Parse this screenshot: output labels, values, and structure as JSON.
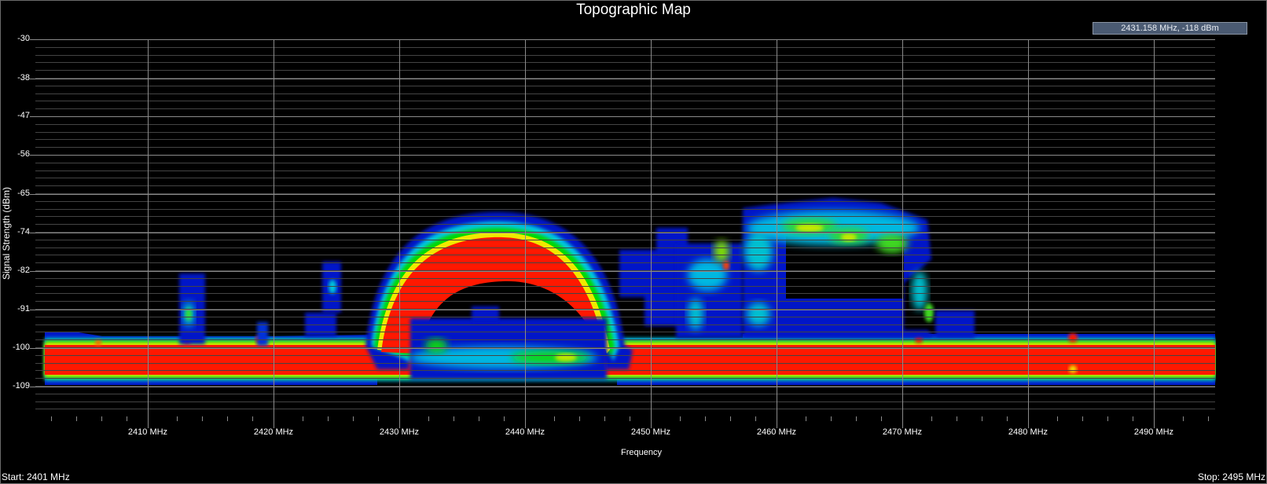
{
  "window": {
    "title": "Topographic Map"
  },
  "cursor_readout": {
    "text": "2431.158 MHz,   -118 dBm",
    "frequency_mhz": 2431.158,
    "level_dbm": -118
  },
  "footer": {
    "start": "Start: 2401 MHz",
    "stop": "Stop: 2495 MHz"
  },
  "axes": {
    "y_title": "Signal Strength (dBm)",
    "x_title": "Frequency",
    "y_ticks": [
      "-30",
      "-38",
      "-47",
      "-56",
      "-65",
      "-74",
      "-82",
      "-91",
      "-100",
      "-109"
    ],
    "x_ticks": [
      "2410 MHz",
      "2420 MHz",
      "2430 MHz",
      "2440 MHz",
      "2450 MHz",
      "2460 MHz",
      "2470 MHz",
      "2480 MHz",
      "2490 MHz"
    ]
  },
  "colors": {
    "background": "#000000",
    "grid_major": "#8a8a8a",
    "grid_minor": "#444444",
    "density_low": "#0018c8",
    "density_mid_low": "#00c8e0",
    "density_mid": "#00d800",
    "density_mid_high": "#e8f000",
    "density_high": "#ff1800",
    "readout_bg": "#4a5a72"
  },
  "chart_data": {
    "type": "heatmap",
    "title": "Topographic Map",
    "xlabel": "Frequency",
    "ylabel": "Signal Strength (dBm)",
    "x_range_mhz": [
      2401,
      2495
    ],
    "y_range_dbm": [
      -115,
      -30
    ],
    "x_tick_values": [
      2410,
      2420,
      2430,
      2440,
      2450,
      2460,
      2470,
      2480,
      2490
    ],
    "y_tick_values": [
      -30,
      -38,
      -47,
      -56,
      -65,
      -74,
      -82,
      -91,
      -100,
      -109
    ],
    "grid": true,
    "colormap": [
      "blue (low density)",
      "cyan",
      "green",
      "yellow",
      "red (high density)"
    ],
    "features": [
      {
        "name": "noise floor",
        "freq_mhz": [
          2401,
          2495
        ],
        "level_dbm": [
          -106,
          -99
        ],
        "density": "high"
      },
      {
        "name": "arc signal (wide band)",
        "freq_mhz": [
          2427,
          2446
        ],
        "level_dbm": [
          -100,
          -73
        ],
        "peak_level_dbm": -74,
        "density": "high"
      },
      {
        "name": "lower band activity",
        "freq_mhz": [
          2430,
          2446
        ],
        "level_dbm": [
          -106,
          -95
        ],
        "peak_level_dbm": -101,
        "density": "medium"
      },
      {
        "name": "upper band activity",
        "freq_mhz": [
          2456,
          2473
        ],
        "level_dbm": [
          -96,
          -67
        ],
        "peak_level_dbm": -71,
        "density": "medium"
      },
      {
        "name": "scattered activity",
        "freq_mhz": [
          2447,
          2457
        ],
        "level_dbm": [
          -98,
          -74
        ],
        "peak_level_dbm": -79,
        "density": "low-medium"
      },
      {
        "name": "spur 2413 MHz",
        "freq_mhz": [
          2412,
          2414
        ],
        "level_dbm": [
          -99,
          -82
        ],
        "peak_level_dbm": -91,
        "density": "low-medium"
      },
      {
        "name": "spur 2424 MHz",
        "freq_mhz": [
          2423,
          2425
        ],
        "level_dbm": [
          -98,
          -80
        ],
        "peak_level_dbm": -84,
        "density": "low"
      },
      {
        "name": "spike 2484 MHz",
        "freq_mhz": [
          2483.5,
          2484.5
        ],
        "level_dbm": [
          -106,
          -97
        ],
        "density": "high"
      }
    ],
    "cursor": {
      "frequency_mhz": 2431.158,
      "level_dbm": -118
    }
  }
}
